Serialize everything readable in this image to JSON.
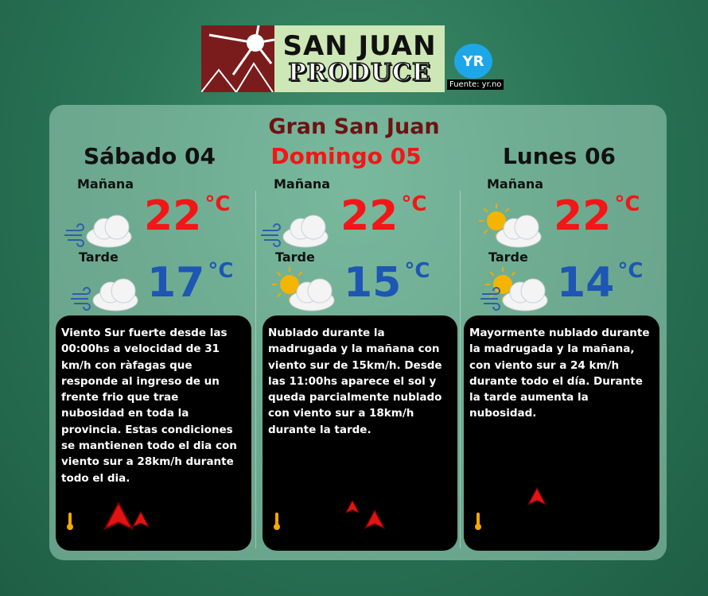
{
  "logo": {
    "line1": "SAN JUAN",
    "line2": "PRODUCE"
  },
  "source": {
    "logo": "YR",
    "label": "Fuente: yr.no"
  },
  "title": "Gran San Juan",
  "labels": {
    "morning": "Mañana",
    "afternoon": "Tarde",
    "unit": "°C"
  },
  "days": [
    {
      "name": "Sábado 04",
      "name_color": "#111111",
      "morning_temp": "22",
      "afternoon_temp": "17",
      "morning_icon": "cloud-wind-icon",
      "afternoon_icon": "cloud-wind-icon",
      "text": "Viento Sur fuerte desde las 00:00hs a velocidad de 31 km/h  con ràfagas que responde al ingreso de un frente frio que trae nubosidad en toda la provincia. Estas condiciones se mantienen todo el dia con viento sur a 28km/h durante todo el dia."
    },
    {
      "name": "Domingo 05",
      "name_color": "#f21616",
      "morning_temp": "22",
      "afternoon_temp": "15",
      "morning_icon": "cloud-wind-icon",
      "afternoon_icon": "sun-cloud-icon",
      "text": "Nublado durante la madrugada y la mañana con viento sur de 15km/h. Desde las 11:00hs aparece el sol y queda parcialmente nublado con viento sur a 18km/h durante la tarde."
    },
    {
      "name": "Lunes 06",
      "name_color": "#111111",
      "morning_temp": "22",
      "afternoon_temp": "14",
      "morning_icon": "sun-cloud-icon",
      "afternoon_icon": "sun-cloud-wind-icon",
      "text": "Mayormente nublado durante la madrugada y la mañana, con viento sur a 24 km/h durante todo el día. Durante la tarde aumenta la nubosidad."
    }
  ],
  "colors": {
    "hot": "#f21616",
    "cool": "#1d56b3",
    "title": "#6e1212"
  }
}
